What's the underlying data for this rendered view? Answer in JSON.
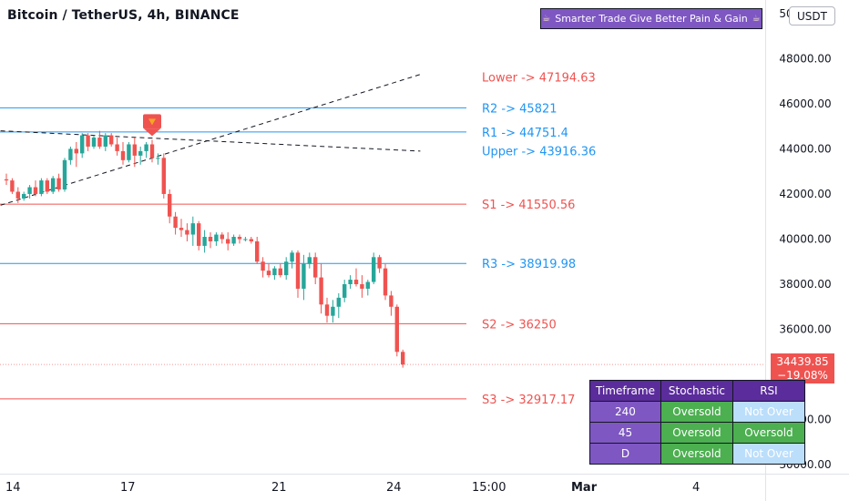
{
  "header": {
    "title": "Bitcoin / TetherUS, 4h, BINANCE",
    "banner_text": "Smarter Trade Give Better Pain & Gain",
    "banner_icon": "coffee-cup-icon",
    "currency_button": "USDT"
  },
  "price_tag": {
    "price": "34439.85",
    "change": "−19.08%"
  },
  "status_table": {
    "headers": [
      "Timeframe",
      "Stochastic",
      "RSI"
    ],
    "rows": [
      {
        "tf": "240",
        "stoch": "Oversold",
        "rsi": "Not Over"
      },
      {
        "tf": "45",
        "stoch": "Oversold",
        "rsi": "Oversold"
      },
      {
        "tf": "D",
        "stoch": "Oversold",
        "rsi": "Not Over"
      }
    ]
  },
  "x_axis_labels": [
    {
      "text": "14",
      "bold": false
    },
    {
      "text": "17",
      "bold": false
    },
    {
      "text": "21",
      "bold": false
    },
    {
      "text": "24",
      "bold": false
    },
    {
      "text": "15:00",
      "bold": false
    },
    {
      "text": "Mar",
      "bold": true
    },
    {
      "text": "4",
      "bold": false
    }
  ],
  "chart_data": {
    "type": "candlestick",
    "y_ticks": [
      30000,
      32000,
      34000,
      36000,
      38000,
      40000,
      42000,
      44000,
      46000,
      48000,
      50000
    ],
    "y_tick_labels": [
      "30000.00",
      "32000.00",
      "34000.00",
      "36000.00",
      "38000.00",
      "40000.00",
      "42000.00",
      "44000.00",
      "46000.00",
      "48000.00",
      "50000.00"
    ],
    "ylim": [
      29600,
      50600
    ],
    "colors": {
      "up": "#26a69a",
      "down": "#ef5350",
      "resistance": "#2196f3",
      "support": "#ef5350",
      "upper_label": "#2196f3",
      "lower_label": "#ef5350",
      "trendline": "#131722",
      "signal": "#ef5350",
      "signal_arrow": "#f5a623"
    },
    "levels": [
      {
        "label": "Lower -> 47194.63",
        "value": 47194.63,
        "kind": "label_only",
        "color_key": "lower_label"
      },
      {
        "label": "R2 -> 45821",
        "value": 45821,
        "kind": "resistance",
        "color_key": "resistance"
      },
      {
        "label": "R1 -> 44751.4",
        "value": 44751.4,
        "kind": "resistance",
        "color_key": "resistance"
      },
      {
        "label": "Upper -> 43916.36",
        "value": 43916.36,
        "kind": "label_only",
        "color_key": "upper_label"
      },
      {
        "label": "S1 -> 41550.56",
        "value": 41550.56,
        "kind": "support",
        "color_key": "support"
      },
      {
        "label": "R3 -> 38919.98",
        "value": 38919.98,
        "kind": "resistance",
        "color_key": "resistance"
      },
      {
        "label": "S2 -> 36250",
        "value": 36250,
        "kind": "support",
        "color_key": "support"
      },
      {
        "label": "S3 -> 32917.17",
        "value": 32917.17,
        "kind": "support",
        "color_key": "support"
      }
    ],
    "last_price": 34439.85,
    "candles": [
      [
        42650,
        42900,
        42400,
        42600
      ],
      [
        42600,
        42700,
        42000,
        42100
      ],
      [
        42100,
        42300,
        41600,
        41800
      ],
      [
        41800,
        42100,
        41700,
        42000
      ],
      [
        42000,
        42400,
        41800,
        42300
      ],
      [
        42300,
        42600,
        41900,
        42000
      ],
      [
        42000,
        42700,
        41900,
        42600
      ],
      [
        42600,
        42700,
        42000,
        42100
      ],
      [
        42100,
        42800,
        42000,
        42700
      ],
      [
        42700,
        42900,
        42100,
        42200
      ],
      [
        42200,
        43600,
        42100,
        43500
      ],
      [
        43500,
        44100,
        43300,
        44000
      ],
      [
        44000,
        44300,
        43200,
        43800
      ],
      [
        43800,
        44700,
        43600,
        44600
      ],
      [
        44600,
        44700,
        43900,
        44100
      ],
      [
        44100,
        44600,
        44000,
        44500
      ],
      [
        44500,
        44800,
        44000,
        44100
      ],
      [
        44100,
        44700,
        43900,
        44600
      ],
      [
        44600,
        44700,
        44100,
        44200
      ],
      [
        44200,
        44500,
        43700,
        43900
      ],
      [
        43900,
        44300,
        43300,
        43500
      ],
      [
        43500,
        44300,
        43400,
        44200
      ],
      [
        44200,
        44500,
        43200,
        43700
      ],
      [
        43700,
        44100,
        43300,
        43900
      ],
      [
        43900,
        44300,
        43600,
        44200
      ],
      [
        44200,
        44400,
        43400,
        43600
      ],
      [
        43600,
        43800,
        43300,
        43600
      ],
      [
        43600,
        43800,
        41800,
        42000
      ],
      [
        42000,
        42200,
        40700,
        41000
      ],
      [
        41000,
        41200,
        40200,
        40500
      ],
      [
        40500,
        40900,
        40100,
        40400
      ],
      [
        40400,
        40700,
        39900,
        40200
      ],
      [
        40200,
        41000,
        39700,
        40700
      ],
      [
        40700,
        40800,
        39500,
        39700
      ],
      [
        39700,
        40400,
        39400,
        40100
      ],
      [
        40100,
        40300,
        39600,
        39900
      ],
      [
        39900,
        40300,
        39700,
        40200
      ],
      [
        40200,
        40300,
        39800,
        40000
      ],
      [
        40000,
        40300,
        39500,
        39800
      ],
      [
        39800,
        40200,
        39700,
        40100
      ],
      [
        40100,
        40200,
        39800,
        40000
      ],
      [
        40000,
        40100,
        39900,
        40000
      ],
      [
        40000,
        40100,
        39800,
        39900
      ],
      [
        39900,
        40100,
        38900,
        39000
      ],
      [
        39000,
        39200,
        38300,
        38600
      ],
      [
        38600,
        38900,
        38300,
        38400
      ],
      [
        38400,
        38800,
        38200,
        38700
      ],
      [
        38700,
        38900,
        38300,
        38400
      ],
      [
        38400,
        39200,
        38200,
        39000
      ],
      [
        39000,
        39500,
        38700,
        39400
      ],
      [
        39400,
        39500,
        37400,
        37800
      ],
      [
        37800,
        39300,
        37300,
        38900
      ],
      [
        38900,
        39400,
        38700,
        39200
      ],
      [
        39200,
        39400,
        38000,
        38300
      ],
      [
        38300,
        38900,
        36700,
        37100
      ],
      [
        37100,
        37400,
        36300,
        36600
      ],
      [
        36600,
        37300,
        36300,
        37000
      ],
      [
        37000,
        37600,
        36500,
        37400
      ],
      [
        37400,
        38200,
        37200,
        38000
      ],
      [
        38000,
        38400,
        37800,
        38200
      ],
      [
        38200,
        38700,
        37900,
        38000
      ],
      [
        38000,
        38400,
        37400,
        37800
      ],
      [
        37800,
        38200,
        37500,
        38100
      ],
      [
        38100,
        39400,
        38000,
        39200
      ],
      [
        39200,
        39300,
        38500,
        38700
      ],
      [
        38700,
        38900,
        37300,
        37500
      ],
      [
        37500,
        37700,
        36600,
        37000
      ],
      [
        37000,
        37100,
        34800,
        35000
      ],
      [
        35000,
        35100,
        34300,
        34440
      ]
    ],
    "trendlines": [
      {
        "from": [
          -1,
          41500
        ],
        "to": [
          71,
          47300
        ],
        "style": "dashed"
      },
      {
        "from": [
          -1,
          44800
        ],
        "to": [
          71,
          43900
        ],
        "style": "dashed"
      }
    ],
    "signal": {
      "index": 25,
      "value": 45050,
      "kind": "sell"
    }
  }
}
